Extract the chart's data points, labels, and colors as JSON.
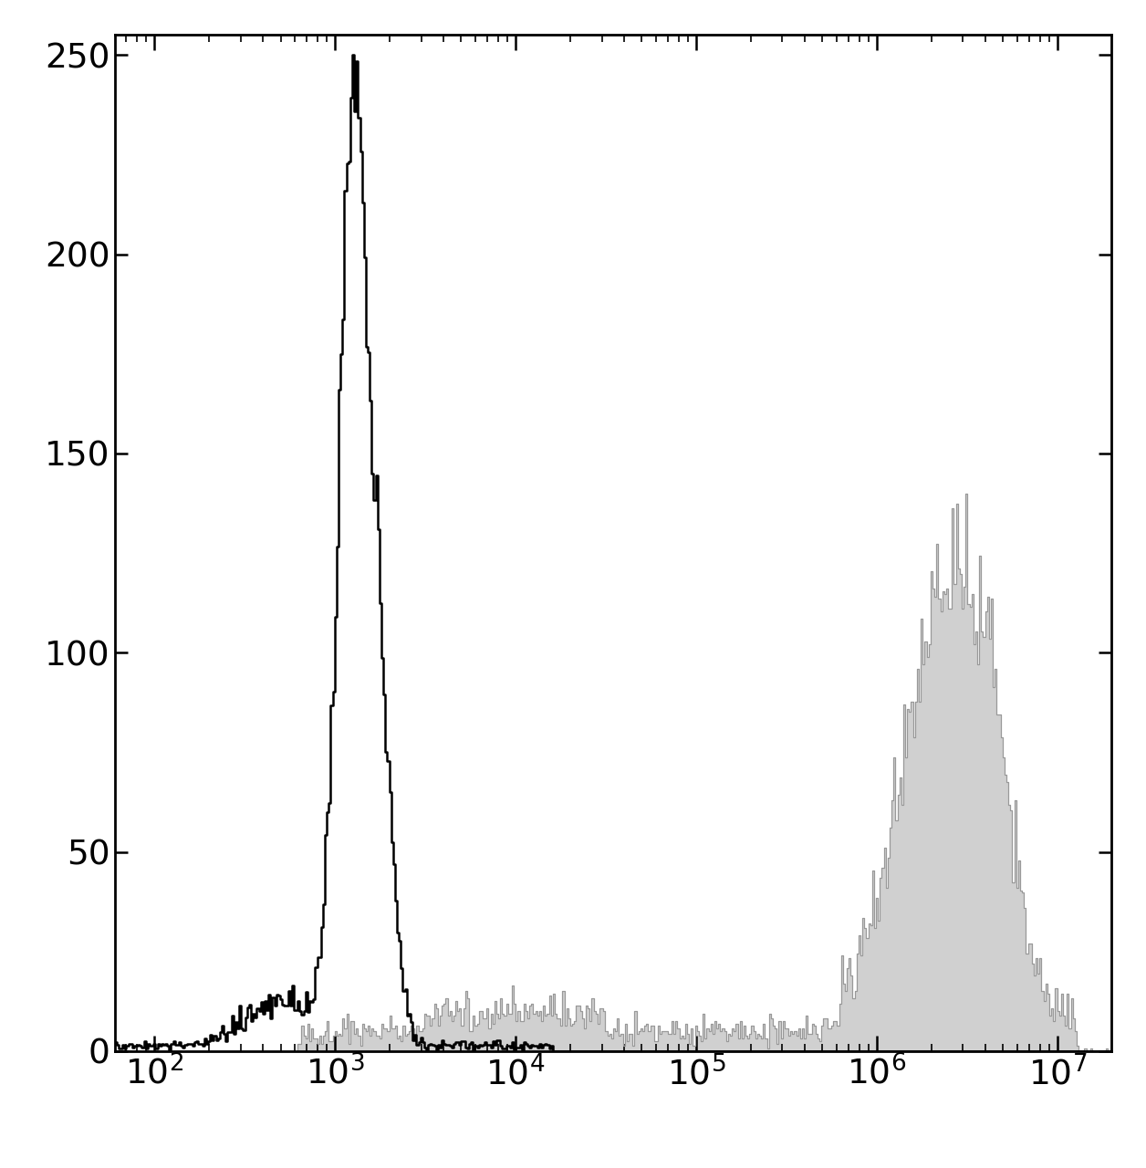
{
  "xlim_log": [
    1.78,
    7.3
  ],
  "ylim": [
    0,
    255
  ],
  "yticks": [
    0,
    50,
    100,
    150,
    200,
    250
  ],
  "xtick_positions": [
    2,
    3,
    4,
    5,
    6,
    7
  ],
  "background_color": "#ffffff",
  "gray_fill_color": "#d0d0d0",
  "gray_line_color": "#999999",
  "black_line_color": "#000000",
  "figure_size": [
    12.56,
    12.8
  ],
  "dpi": 100,
  "black_peak_max": 250,
  "gray_peak_max": 140,
  "n_bins": 512
}
